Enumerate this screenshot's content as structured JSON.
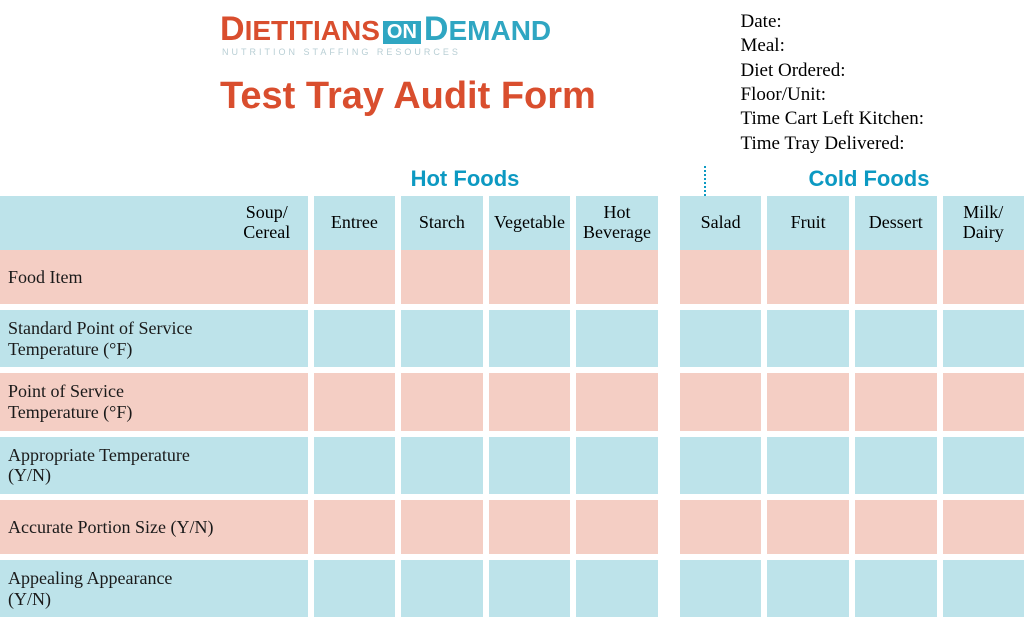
{
  "logo": {
    "word1": "IETITIANS",
    "word1_cap": "D",
    "on": "ON",
    "word2": "EMAND",
    "word2_cap": "D",
    "tagline": "NUTRITION STAFFING RESOURCES"
  },
  "title": "Test Tray Audit Form",
  "meta": {
    "date": "Date:",
    "meal": "Meal:",
    "diet": "Diet Ordered:",
    "floor": "Floor/Unit:",
    "cart": "Time Cart Left Kitchen:",
    "delivered": "Time Tray Delivered:"
  },
  "sections": {
    "hot": "Hot Foods",
    "cold": "Cold Foods"
  },
  "columns": {
    "hot": [
      "Soup/\nCereal",
      "Entree",
      "Starch",
      "Vegetable",
      "Hot\nBeverage"
    ],
    "cold": [
      "Salad",
      "Fruit",
      "Dessert",
      "Milk/\nDairy"
    ]
  },
  "rows": [
    {
      "label": "Food Item",
      "tint": "pink"
    },
    {
      "label": "Standard Point of Service Temperature (°F)",
      "tint": "blue"
    },
    {
      "label": "Point of Service Temperature (°F)",
      "tint": "pink"
    },
    {
      "label": "Appropriate Temperature (Y/N)",
      "tint": "blue"
    },
    {
      "label": "Accurate Portion Size (Y/N)",
      "tint": "pink"
    },
    {
      "label": "Appealing Appearance (Y/N)",
      "tint": "blue"
    }
  ],
  "styling": {
    "accent_orange": "#d94e2e",
    "accent_teal": "#0c99c2",
    "cell_blue": "#bde3ea",
    "cell_pink": "#f4cec4",
    "background": "#ffffff",
    "body_font": "Georgia",
    "heading_font": "Arial",
    "title_fontsize": 38,
    "section_fontsize": 22,
    "cell_fontsize": 18,
    "column_widths": {
      "rowlabel": 226,
      "hot_block": 478,
      "gap": 10
    }
  }
}
